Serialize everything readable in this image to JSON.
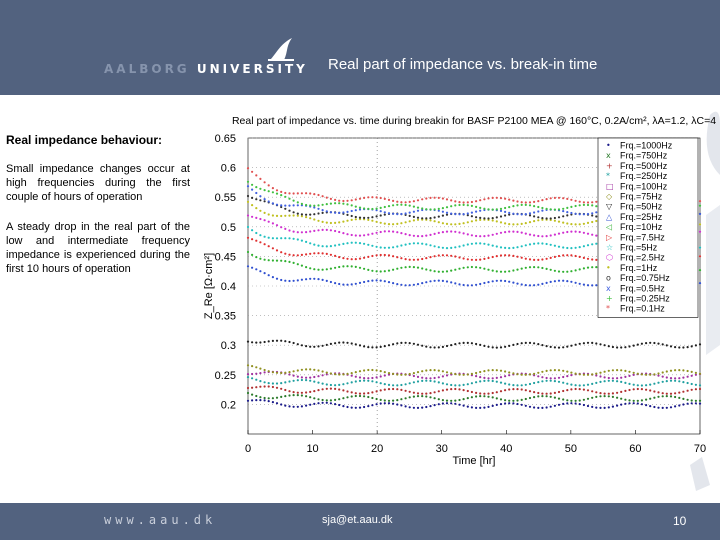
{
  "header": {
    "logo_prefix": "AALBORG",
    "logo_suffix": "UNIVERSITY",
    "slide_title": "Real part of impedance vs. break-in time"
  },
  "left_panel": {
    "heading": "Real impedance behaviour:",
    "paragraph1": "Small impedance changes occur at high frequencies during the first couple of hours of operation",
    "paragraph2": "A steady drop in the real part of the low and intermediate frequency impedance is experienced during the first 10 hours of operation"
  },
  "footer": {
    "url": "www.aau.dk",
    "email": "sja@et.aau.dk",
    "page_number": "10"
  },
  "colors": {
    "header_bg": "#52627f",
    "background": "#ffffff"
  },
  "chart_data": {
    "type": "scatter",
    "title": "Real part of impedance vs. time during breakin for BASF P2100 MEA @ 160°C, 0.2A/cm², λA=1.2, λC=4",
    "xlabel": "Time [hr]",
    "ylabel": "Z_Re [Ω·cm²]",
    "xlim": [
      0,
      70
    ],
    "ylim": [
      0.15,
      0.65
    ],
    "x_ticks": [
      "0",
      "10",
      "20",
      "30",
      "40",
      "50",
      "60",
      "70"
    ],
    "y_ticks": [
      "0.2",
      "0.25",
      "0.3",
      "0.35",
      "0.4",
      "0.45",
      "0.5",
      "0.55",
      "0.6",
      "0.65"
    ],
    "vertical_guide_x": 20,
    "legend_position": "right",
    "series": [
      {
        "name": "Frq.=1000Hz",
        "color": "#1a1a8a",
        "marker": "•",
        "start": 0.206,
        "end": 0.198
      },
      {
        "name": "Frq.=750Hz",
        "color": "#2a7a2a",
        "marker": "x",
        "start": 0.218,
        "end": 0.21
      },
      {
        "name": "Frq.=500Hz",
        "color": "#b03030",
        "marker": "+",
        "start": 0.23,
        "end": 0.222
      },
      {
        "name": "Frq.=250Hz",
        "color": "#20a0a0",
        "marker": "*",
        "start": 0.243,
        "end": 0.236
      },
      {
        "name": "Frq.=100Hz",
        "color": "#a030a0",
        "marker": "s",
        "start": 0.255,
        "end": 0.248
      },
      {
        "name": "Frq.=75Hz",
        "color": "#909020",
        "marker": "d",
        "start": 0.262,
        "end": 0.254
      },
      {
        "name": "Frq.=50Hz",
        "color": "#202020",
        "marker": "v",
        "start": 0.31,
        "end": 0.3
      },
      {
        "name": "Frq.=25Hz",
        "color": "#3050d0",
        "marker": "^",
        "start": 0.43,
        "end": 0.405
      },
      {
        "name": "Frq.=10Hz",
        "color": "#30b030",
        "marker": "<",
        "start": 0.46,
        "end": 0.428
      },
      {
        "name": "Frq.=7.5Hz",
        "color": "#e03030",
        "marker": ">",
        "start": 0.48,
        "end": 0.448
      },
      {
        "name": "Frq.=5Hz",
        "color": "#20c0c0",
        "marker": "p",
        "start": 0.5,
        "end": 0.468
      },
      {
        "name": "Frq.=2.5Hz",
        "color": "#d030d0",
        "marker": "h",
        "start": 0.52,
        "end": 0.488
      },
      {
        "name": "Frq.=1Hz",
        "color": "#c0c020",
        "marker": "•",
        "start": 0.54,
        "end": 0.508
      },
      {
        "name": "Frq.=0.75Hz",
        "color": "#303030",
        "marker": "o",
        "start": 0.555,
        "end": 0.518
      },
      {
        "name": "Frq.=0.5Hz",
        "color": "#4060e0",
        "marker": "x",
        "start": 0.565,
        "end": 0.525
      },
      {
        "name": "Frq.=0.25Hz",
        "color": "#40c040",
        "marker": "+",
        "start": 0.58,
        "end": 0.533
      },
      {
        "name": "Frq.=0.1Hz",
        "color": "#e05050",
        "marker": "*",
        "start": 0.595,
        "end": 0.545
      }
    ]
  }
}
